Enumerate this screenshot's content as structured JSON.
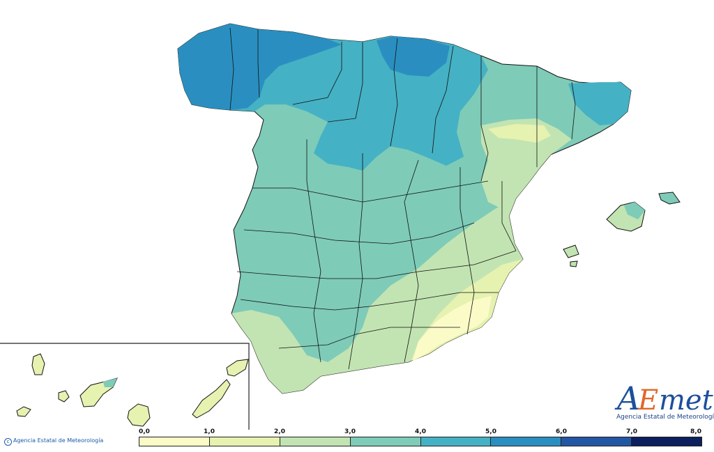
{
  "copyright": "Agencia Estatal de Meteorología",
  "logo": {
    "wordmark": "AEMet",
    "subtitle": "Agencia Estatal de Meteorología"
  },
  "legend": {
    "ticks": [
      "0,0",
      "1,0",
      "2,0",
      "3,0",
      "4,0",
      "5,0",
      "6,0",
      "7,0",
      "8,0"
    ],
    "colors": [
      "#fbfbc8",
      "#e6f2b0",
      "#c2e4b2",
      "#7ecbb8",
      "#45b1c4",
      "#2a8fc0",
      "#2357a3",
      "#0c1f5e"
    ]
  },
  "map_regions": {
    "levels": [
      "0-1",
      "1-2",
      "2-3",
      "3-4",
      "4-5",
      "5-6"
    ],
    "colors": {
      "lvl1": "#fbfbc8",
      "lvl2": "#e6f2b0",
      "lvl3": "#c2e4b2",
      "lvl4": "#7ecbb8",
      "lvl5": "#45b1c4",
      "lvl6": "#2a8fc0"
    }
  }
}
